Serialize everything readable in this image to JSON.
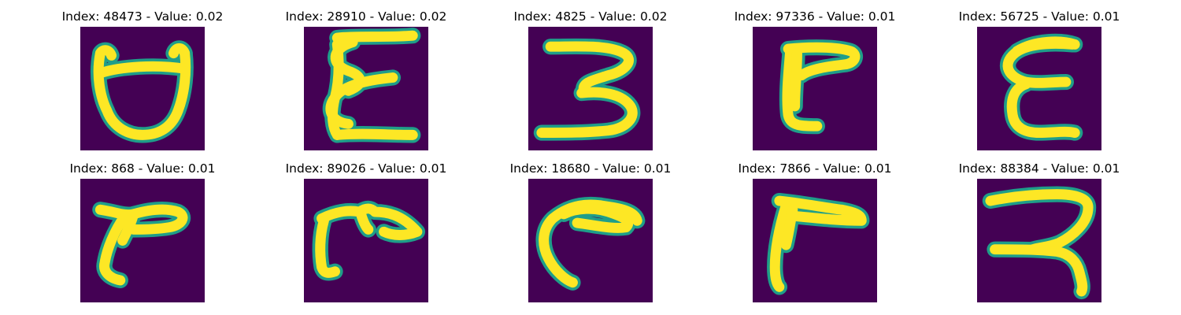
{
  "colors": {
    "background": "#440154",
    "edge": "#1f9e89",
    "stroke": "#fde725",
    "page": "#ffffff"
  },
  "panels": [
    {
      "title": "Index: 48473 - Value: 0.02"
    },
    {
      "title": "Index: 28910 - Value: 0.02"
    },
    {
      "title": "Index: 4825 - Value: 0.02"
    },
    {
      "title": "Index: 97336 - Value: 0.01"
    },
    {
      "title": "Index: 56725 - Value: 0.01"
    },
    {
      "title": "Index: 868 - Value: 0.01"
    },
    {
      "title": "Index: 89026 - Value: 0.01"
    },
    {
      "title": "Index: 18680 - Value: 0.01"
    },
    {
      "title": "Index: 7866 - Value: 0.01"
    },
    {
      "title": "Index: 88384 - Value: 0.01"
    }
  ]
}
